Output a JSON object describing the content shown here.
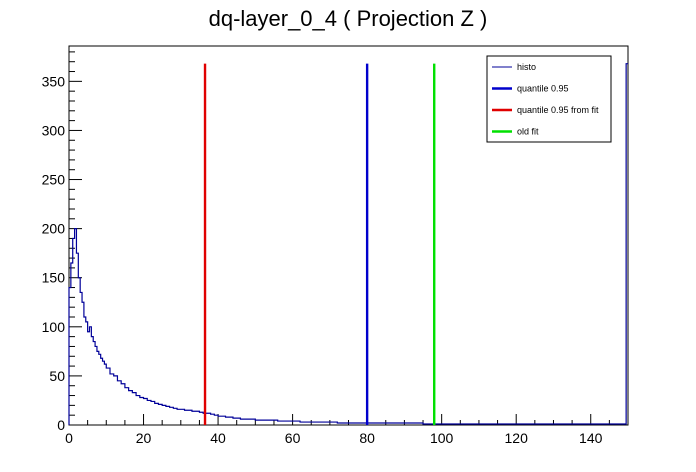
{
  "chart_data": {
    "type": "histogram",
    "title": "dq-layer_0_4 ( Projection Z )",
    "xlabel": "",
    "ylabel": "",
    "xlim": [
      0,
      150
    ],
    "ylim": [
      0,
      386
    ],
    "x_ticks": [
      0,
      20,
      40,
      60,
      80,
      100,
      120,
      140
    ],
    "y_ticks": [
      0,
      50,
      100,
      150,
      200,
      250,
      300,
      350
    ],
    "grid": false,
    "legend_position": "top-right",
    "series": [
      {
        "name": "histo",
        "type": "step",
        "color": "#000099",
        "x": [
          0,
          0.5,
          1,
          1.5,
          2,
          2.5,
          3,
          3.5,
          4,
          4.5,
          5,
          5.5,
          6,
          6.5,
          7,
          7.5,
          8,
          8.5,
          9,
          9.5,
          10,
          11,
          12,
          13,
          14,
          15,
          16,
          17,
          18,
          19,
          20,
          21,
          22,
          23,
          24,
          25,
          26,
          27,
          28,
          29,
          30,
          31,
          32,
          33,
          34,
          35,
          36,
          37,
          38,
          39,
          40,
          42,
          44,
          46,
          48,
          50,
          52,
          54,
          56,
          58,
          60,
          62,
          64,
          66,
          68,
          70,
          72,
          74,
          76,
          78,
          80,
          85,
          90,
          95,
          100,
          105,
          110,
          115,
          120,
          125,
          130,
          135,
          140,
          145,
          149.5
        ],
        "values": [
          140,
          165,
          190,
          200,
          175,
          150,
          135,
          125,
          110,
          105,
          95,
          100,
          90,
          85,
          80,
          75,
          72,
          68,
          65,
          62,
          58,
          52,
          50,
          45,
          42,
          38,
          35,
          33,
          30,
          28,
          27,
          25,
          24,
          22,
          21,
          20,
          19,
          18,
          17,
          16,
          16,
          15,
          15,
          14,
          14,
          13,
          12,
          12,
          11,
          10,
          9,
          8,
          7,
          6,
          6,
          5,
          5,
          5,
          4,
          4,
          4,
          3,
          3,
          3,
          3,
          3,
          2,
          2,
          2,
          2,
          2,
          2,
          2,
          1,
          1,
          1,
          1,
          1,
          1,
          1,
          1,
          1,
          1,
          1,
          368
        ]
      },
      {
        "name": "quantile 0.95",
        "type": "vline",
        "x": 80,
        "y_top": 368,
        "color": "#0000cc"
      },
      {
        "name": "quantile 0.95 from fit",
        "type": "vline",
        "x": 36.5,
        "y_top": 368,
        "color": "#e00000"
      },
      {
        "name": "old fit",
        "type": "vline",
        "x": 98,
        "y_top": 368,
        "color": "#00e000"
      }
    ]
  }
}
